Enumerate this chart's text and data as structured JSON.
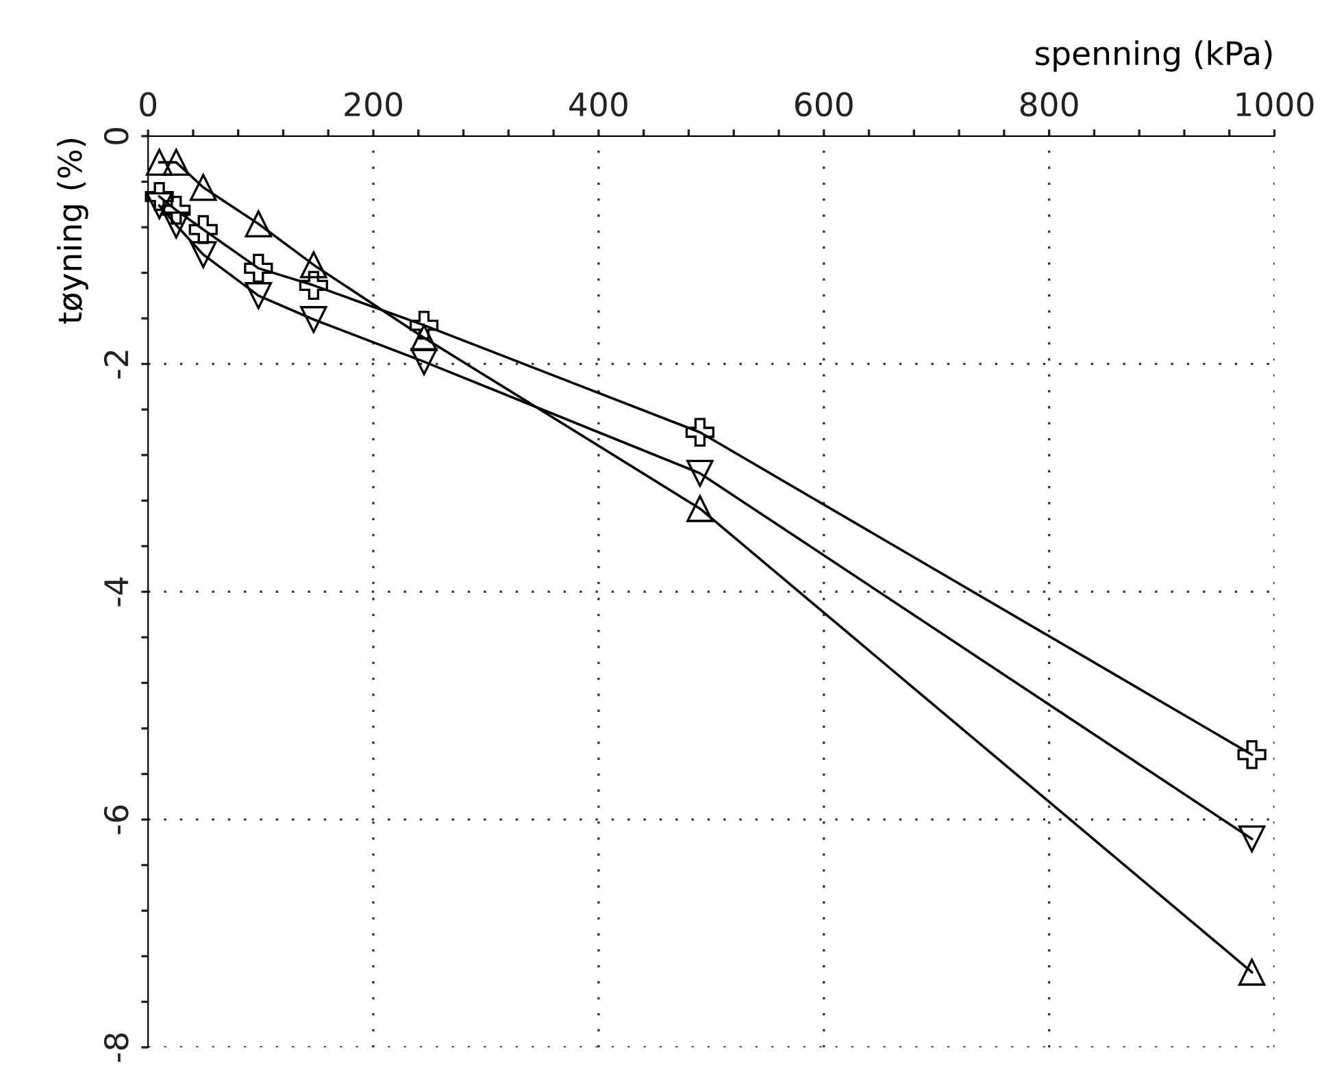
{
  "chart_data": {
    "type": "line",
    "xlabel": "spenning (kPa)",
    "ylabel": "tøyning (%)",
    "xlim": [
      0,
      1000
    ],
    "ylim": [
      -8,
      0
    ],
    "xticks": [
      0,
      {
        "value": 40,
        "label": null
      },
      {
        "value": 80,
        "label": null
      },
      {
        "value": 120,
        "label": null
      },
      {
        "value": 160,
        "label": null
      },
      200,
      {
        "value": 240,
        "label": null
      },
      {
        "value": 280,
        "label": null
      },
      {
        "value": 320,
        "label": null
      },
      {
        "value": 360,
        "label": null
      },
      400,
      {
        "value": 440,
        "label": null
      },
      {
        "value": 480,
        "label": null
      },
      {
        "value": 520,
        "label": null
      },
      {
        "value": 560,
        "label": null
      },
      600,
      {
        "value": 640,
        "label": null
      },
      {
        "value": 680,
        "label": null
      },
      {
        "value": 720,
        "label": null
      },
      {
        "value": 760,
        "label": null
      },
      800,
      {
        "value": 840,
        "label": null
      },
      {
        "value": 880,
        "label": null
      },
      {
        "value": 920,
        "label": null
      },
      {
        "value": 960,
        "label": null
      },
      1000
    ],
    "yticks": [
      -8,
      {
        "value": -7.6,
        "label": null
      },
      {
        "value": -7.2,
        "label": null
      },
      {
        "value": -6.8,
        "label": null
      },
      {
        "value": -6.4,
        "label": null
      },
      -6,
      {
        "value": -5.6,
        "label": null
      },
      {
        "value": -5.2,
        "label": null
      },
      {
        "value": -4.8,
        "label": null
      },
      {
        "value": -4.4,
        "label": null
      },
      -4,
      {
        "value": -3.6,
        "label": null
      },
      {
        "value": -3.2,
        "label": null
      },
      {
        "value": -2.8,
        "label": null
      },
      {
        "value": -2.4,
        "label": null
      },
      -2,
      {
        "value": -1.6,
        "label": null
      },
      {
        "value": -1.2,
        "label": null
      },
      {
        "value": -0.8,
        "label": null
      },
      {
        "value": -0.4,
        "label": null
      },
      0
    ],
    "grid": true,
    "line_style": "solid",
    "x": [
      10,
      25,
      49,
      98,
      147,
      245,
      490,
      980
    ],
    "series": [
      {
        "color": "#000000",
        "marker": "triangle",
        "values": [
          -0.23,
          -0.23,
          -0.45,
          -0.77,
          -1.13,
          -1.77,
          -3.27,
          -7.34
        ]
      },
      {
        "color": "#000000",
        "marker": "cross",
        "values": [
          -0.53,
          -0.65,
          -0.82,
          -1.16,
          -1.31,
          -1.66,
          -2.6,
          -5.43
        ]
      },
      {
        "color": "#000000",
        "marker": "triangle_down",
        "values": [
          -0.61,
          -0.78,
          -1.04,
          -1.4,
          -1.61,
          -1.98,
          -2.96,
          -6.17
        ]
      }
    ]
  }
}
